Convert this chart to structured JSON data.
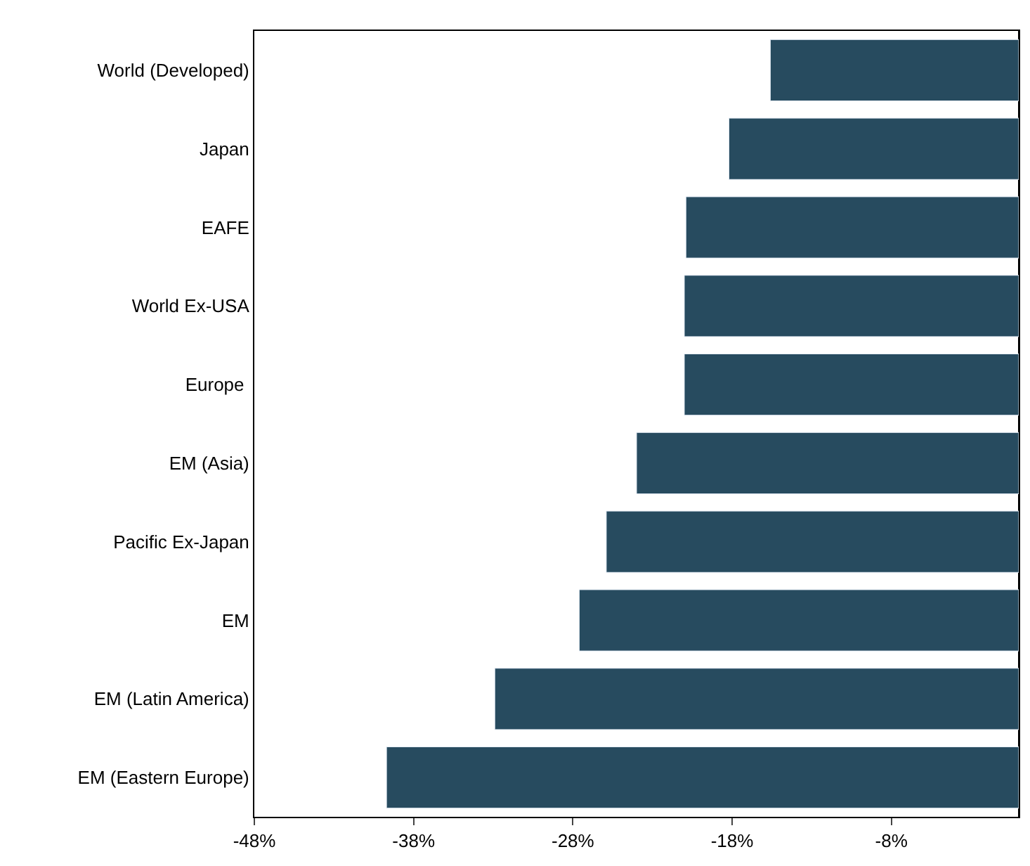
{
  "chart_data": {
    "type": "bar",
    "orientation": "horizontal",
    "categories": [
      "World (Developed)",
      "Japan",
      "EAFE",
      "World Ex-USA",
      "Europe ",
      "EM (Asia)",
      "Pacific Ex-Japan",
      "EM",
      "EM (Latin America)",
      "EM (Eastern Europe)"
    ],
    "values": [
      -15.6,
      -18.2,
      -20.9,
      -21.0,
      -21.0,
      -24.0,
      -25.9,
      -27.6,
      -32.9,
      -39.7
    ],
    "color": "#274b5f",
    "xlim": [
      -48,
      0
    ],
    "xticks": [
      {
        "value": -48,
        "label": "-48%"
      },
      {
        "value": -38,
        "label": "-38%"
      },
      {
        "value": -28,
        "label": "-28%"
      },
      {
        "value": -18,
        "label": "-18%"
      },
      {
        "value": -8,
        "label": "-8%"
      }
    ],
    "legend": false
  }
}
